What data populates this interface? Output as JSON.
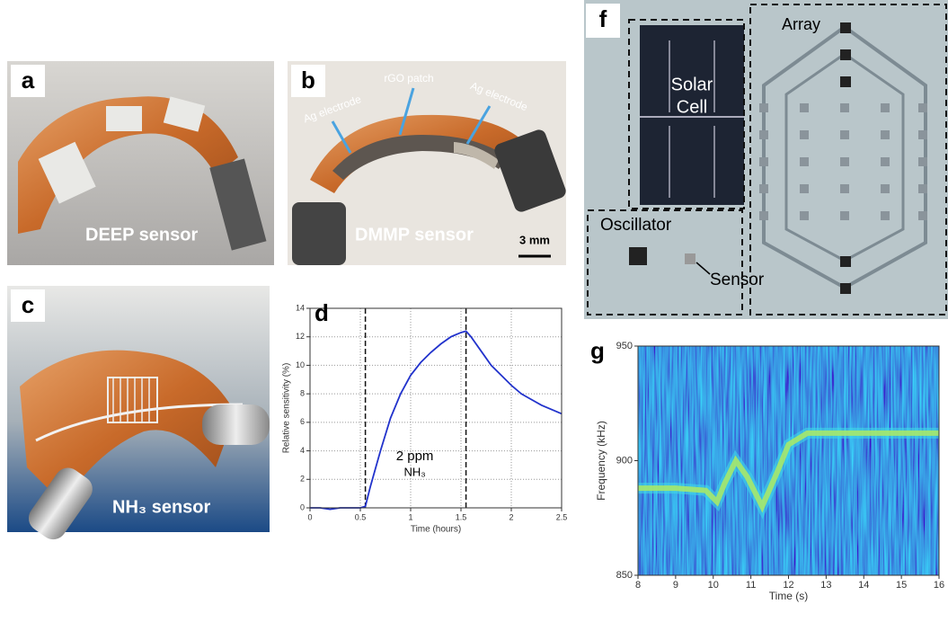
{
  "panels": {
    "a": {
      "label": "a",
      "caption": "DEEP sensor"
    },
    "b": {
      "label": "b",
      "caption": "DMMP sensor",
      "patch": "rGO patch",
      "electrode_left": "Ag electrode",
      "electrode_right": "Ag electrode",
      "scale": "3 mm"
    },
    "c": {
      "label": "c",
      "caption": "NH₃ sensor"
    },
    "d": {
      "label": "d"
    },
    "f": {
      "label": "f",
      "array": "Array",
      "solar_cell": [
        "Solar",
        "Cell"
      ],
      "oscillator": "Oscillator",
      "sensor": "Sensor"
    },
    "g": {
      "label": "g"
    }
  },
  "chart_data": [
    {
      "type": "line",
      "xlabel": "Time (hours)",
      "ylabel": "Relative sensitivity (%)",
      "annotation": [
        "2 ppm",
        "NH₃"
      ],
      "x": [
        0,
        0.1,
        0.2,
        0.3,
        0.4,
        0.5,
        0.55,
        0.6,
        0.7,
        0.8,
        0.9,
        1.0,
        1.1,
        1.2,
        1.3,
        1.4,
        1.5,
        1.55,
        1.6,
        1.7,
        1.8,
        1.9,
        2.0,
        2.1,
        2.2,
        2.3,
        2.4,
        2.5
      ],
      "values": [
        0,
        0,
        -0.1,
        0,
        0,
        0,
        0.1,
        1.5,
        4,
        6.3,
        8,
        9.3,
        10.2,
        10.9,
        11.5,
        12,
        12.3,
        12.4,
        12,
        11,
        10,
        9.3,
        8.6,
        8,
        7.6,
        7.2,
        6.9,
        6.6
      ],
      "color": "#2233cc",
      "vlines": [
        0.55,
        1.55
      ],
      "xlim": [
        0,
        2.5
      ],
      "xticks": [
        0,
        0.5,
        1,
        1.5,
        2,
        2.5
      ],
      "ylim": [
        0,
        14
      ],
      "yticks": [
        0,
        2,
        4,
        6,
        8,
        10,
        12,
        14
      ],
      "grid": true
    },
    {
      "type": "spectrogram",
      "xlabel": "Time (s)",
      "ylabel": "Frequency (kHz)",
      "x": [
        8,
        9,
        9.8,
        10.1,
        10.3,
        10.6,
        10.9,
        11.3,
        11.7,
        12,
        12.5,
        13,
        14,
        15,
        16
      ],
      "values": [
        888,
        888,
        887,
        882,
        890,
        900,
        893,
        880,
        895,
        907,
        912,
        912,
        912,
        912,
        912
      ],
      "color": "#a6e86a",
      "xlim": [
        8,
        16
      ],
      "xticks": [
        8,
        9,
        10,
        11,
        12,
        13,
        14,
        15,
        16
      ],
      "ylim": [
        850,
        950
      ],
      "yticks": [
        850,
        900,
        950
      ]
    }
  ]
}
